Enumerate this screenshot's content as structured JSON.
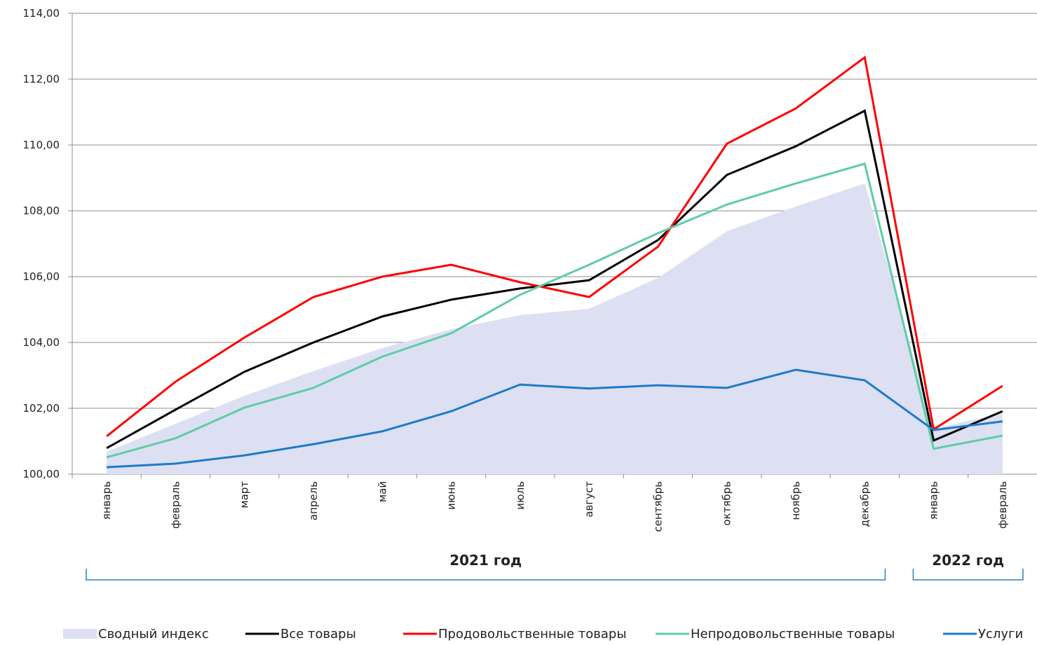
{
  "chart_data": {
    "type": "line",
    "categories": [
      "январь",
      "февраль",
      "март",
      "апрель",
      "май",
      "июнь",
      "июль",
      "август",
      "сентябрь",
      "октябрь",
      "ноябрь",
      "декабрь",
      "январь",
      "февраль"
    ],
    "groups": [
      "2021 год",
      "2022 год"
    ],
    "series": [
      {
        "name": "Сводный индекс",
        "kind": "area",
        "color": "#dce0f2",
        "values": [
          100.68,
          101.53,
          102.38,
          103.13,
          103.83,
          104.4,
          104.83,
          105.02,
          105.96,
          107.38,
          108.13,
          108.83,
          101.38,
          101.85
        ]
      },
      {
        "name": "Все товары",
        "kind": "line",
        "color": "#000000",
        "values": [
          100.79,
          101.96,
          103.11,
          104.0,
          104.79,
          105.3,
          105.64,
          105.89,
          107.11,
          109.09,
          109.96,
          111.04,
          101.02,
          101.91
        ]
      },
      {
        "name": "Продовольственные товары",
        "kind": "line",
        "color": "#ff0000",
        "values": [
          101.15,
          102.81,
          104.15,
          105.38,
          106.0,
          106.36,
          105.83,
          105.38,
          106.91,
          110.04,
          111.11,
          112.66,
          101.36,
          102.68
        ]
      },
      {
        "name": "Непродовольственные товары",
        "kind": "line",
        "color": "#5fcca6",
        "values": [
          100.51,
          101.09,
          102.02,
          102.62,
          103.57,
          104.28,
          105.45,
          106.36,
          107.32,
          108.19,
          108.83,
          109.43,
          100.77,
          101.17
        ]
      },
      {
        "name": "Услуги",
        "kind": "line",
        "color": "#1f7ac8",
        "values": [
          100.21,
          100.32,
          100.57,
          100.91,
          101.3,
          101.91,
          102.72,
          102.6,
          102.7,
          102.62,
          103.17,
          102.85,
          101.34,
          101.6
        ]
      }
    ],
    "ylim": [
      100,
      114
    ],
    "yticks": [
      {
        "value": 100,
        "label": "100,00"
      },
      {
        "value": 102,
        "label": "102,00"
      },
      {
        "value": 104,
        "label": "104,00"
      },
      {
        "value": 106,
        "label": "106,00"
      },
      {
        "value": 108,
        "label": "108,00"
      },
      {
        "value": 110,
        "label": "110,00"
      },
      {
        "value": 112,
        "label": "112,00"
      },
      {
        "value": 114,
        "label": "114,00"
      }
    ],
    "grid": true
  }
}
